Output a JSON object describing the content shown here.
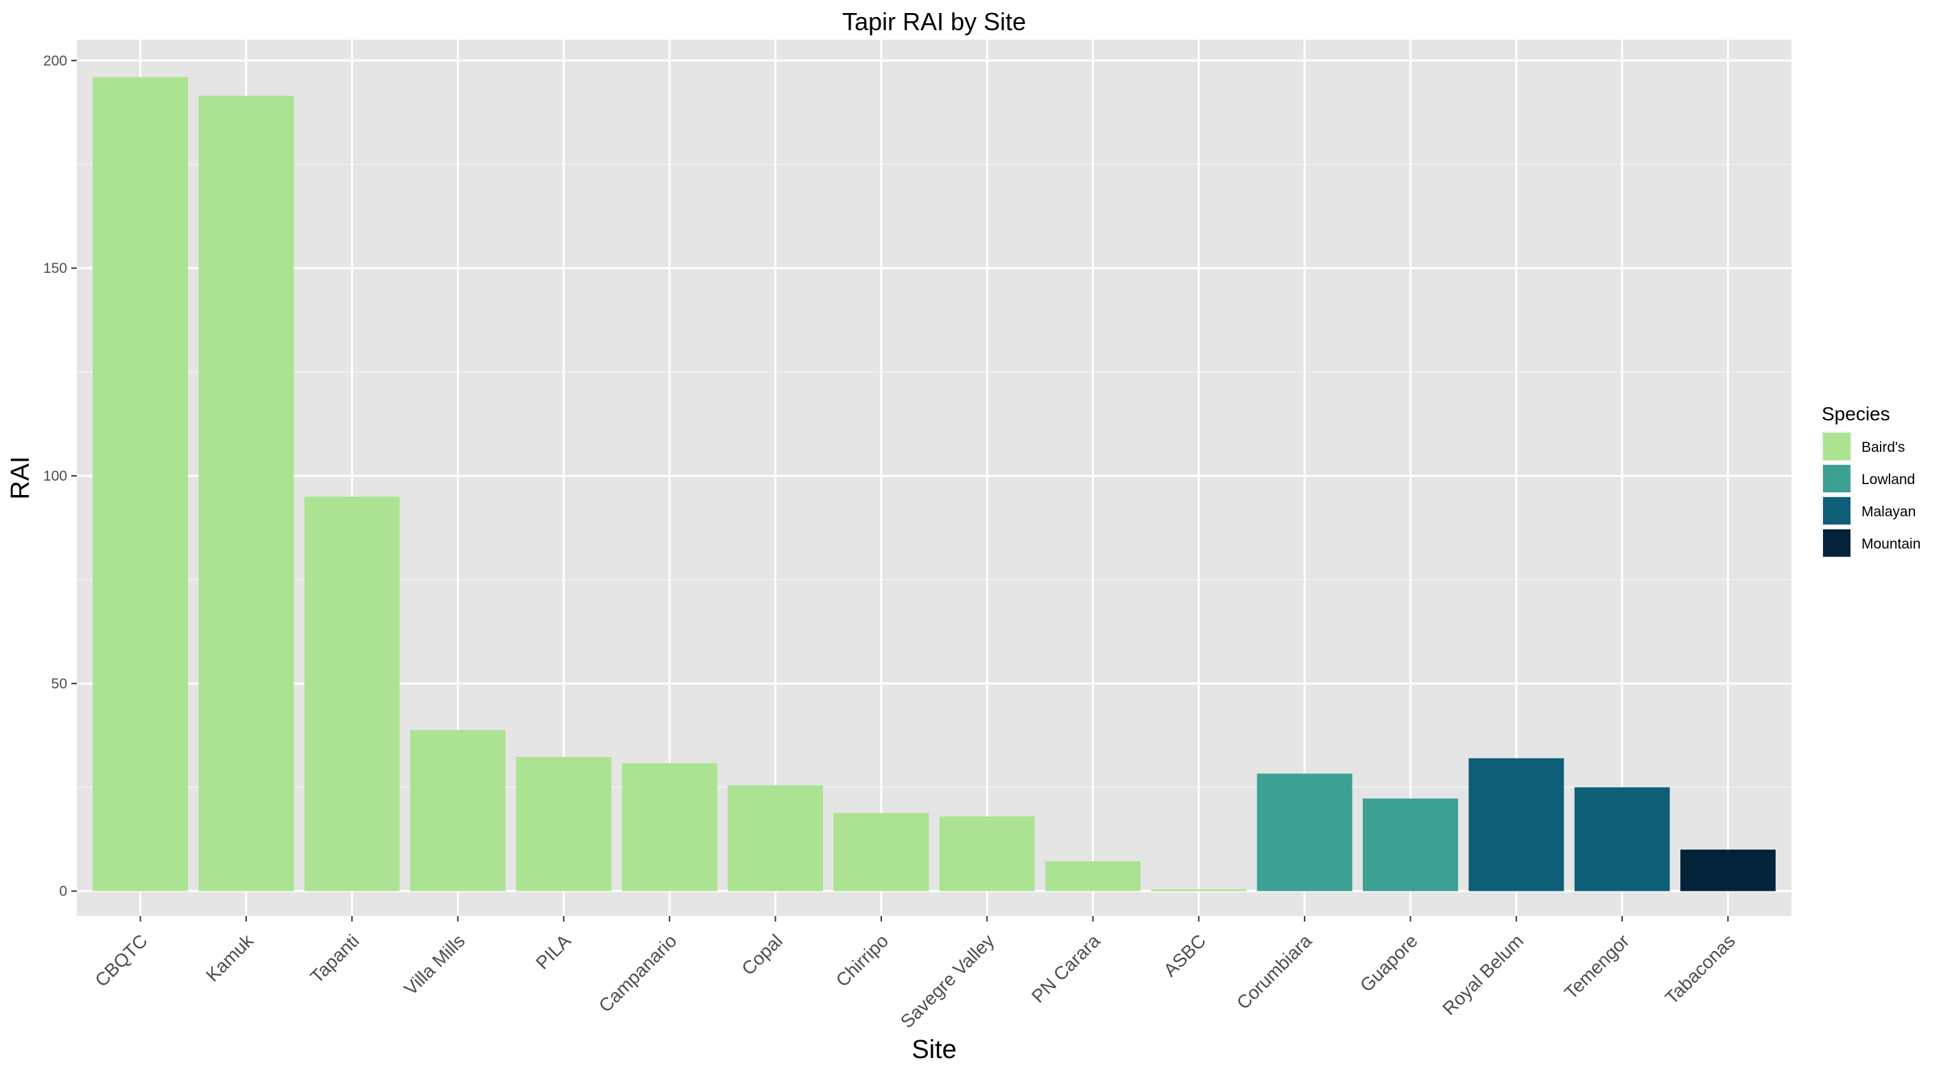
{
  "chart_data": {
    "type": "bar",
    "title": "Tapir RAI by Site",
    "xlabel": "Site",
    "ylabel": "RAI",
    "ylim": [
      -6,
      205
    ],
    "yticks": [
      0,
      50,
      100,
      150,
      200
    ],
    "grid": true,
    "legend": {
      "title": "Species",
      "position": "right",
      "entries": [
        {
          "name": "Baird's",
          "color": "#abe393"
        },
        {
          "name": "Lowland",
          "color": "#3ca193"
        },
        {
          "name": "Malayan",
          "color": "#0f5e78"
        },
        {
          "name": "Mountain",
          "color": "#03233a"
        }
      ]
    },
    "categories": [
      "CBQTC",
      "Kamuk",
      "Tapanti",
      "Villa Mills",
      "PILA",
      "Campanario",
      "Copal",
      "Chirripo",
      "Savegre Valley",
      "PN Carara",
      "ASBC",
      "Corumbiara",
      "Guapore",
      "Royal Belum",
      "Temengor",
      "Tabaconas"
    ],
    "values": [
      196,
      191.5,
      95,
      38.8,
      32.3,
      30.8,
      25.5,
      18.8,
      18,
      7.2,
      0.4,
      28.3,
      22.3,
      32,
      25,
      10
    ],
    "species": [
      "Baird's",
      "Baird's",
      "Baird's",
      "Baird's",
      "Baird's",
      "Baird's",
      "Baird's",
      "Baird's",
      "Baird's",
      "Baird's",
      "Baird's",
      "Lowland",
      "Lowland",
      "Malayan",
      "Malayan",
      "Mountain"
    ]
  }
}
